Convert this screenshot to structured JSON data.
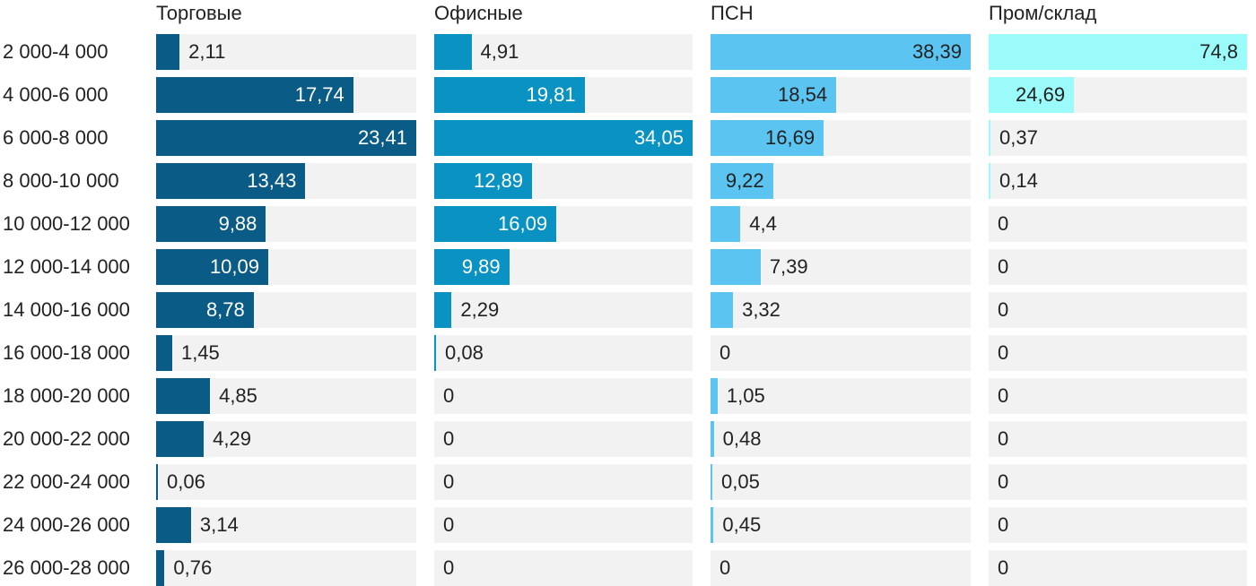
{
  "chart_data": {
    "type": "bar",
    "orientation": "horizontal",
    "layout": "small-multiples",
    "grid": false,
    "categories": [
      "2 000-4 000",
      "4 000-6 000",
      "6 000-8 000",
      "8 000-10 000",
      "10 000-12 000",
      "12 000-14 000",
      "14 000-16 000",
      "16 000-18 000",
      "18 000-20 000",
      "20 000-22 000",
      "22 000-24 000",
      "24 000-26 000",
      "26 000-28 000"
    ],
    "series": [
      {
        "name": "Торговые",
        "color": "#0a5b85",
        "values": [
          2.11,
          17.74,
          23.41,
          13.43,
          9.88,
          10.09,
          8.78,
          1.45,
          4.85,
          4.29,
          0.06,
          3.14,
          0.76
        ],
        "labels": [
          "2,11",
          "17,74",
          "23,41",
          "13,43",
          "9,88",
          "10,09",
          "8,78",
          "1,45",
          "4,85",
          "4,29",
          "0,06",
          "3,14",
          "0,76"
        ]
      },
      {
        "name": "Офисные",
        "color": "#0a93c2",
        "values": [
          4.91,
          19.81,
          34.05,
          12.89,
          16.09,
          9.89,
          2.29,
          0.08,
          0,
          0,
          0,
          0,
          0
        ],
        "labels": [
          "4,91",
          "19,81",
          "34,05",
          "12,89",
          "16,09",
          "9,89",
          "2,29",
          "0,08",
          "0",
          "0",
          "0",
          "0",
          "0"
        ]
      },
      {
        "name": "ПСН",
        "color": "#5bc4f0",
        "values": [
          38.39,
          18.54,
          16.69,
          9.22,
          4.4,
          7.39,
          3.32,
          0,
          1.05,
          0.48,
          0.05,
          0.45,
          0
        ],
        "labels": [
          "38,39",
          "18,54",
          "16,69",
          "9,22",
          "4,4",
          "7,39",
          "3,32",
          "0",
          "1,05",
          "0,48",
          "0,05",
          "0,45",
          "0"
        ]
      },
      {
        "name": "Пром/склад",
        "color": "#9bfafa",
        "values": [
          74.8,
          24.69,
          0.37,
          0.14,
          0,
          0,
          0,
          0,
          0,
          0,
          0,
          0,
          0
        ],
        "labels": [
          "74,8",
          "24,69",
          "0,37",
          "0,14",
          "0",
          "0",
          "0",
          "0",
          "0",
          "0",
          "0",
          "0",
          "0"
        ]
      }
    ]
  }
}
